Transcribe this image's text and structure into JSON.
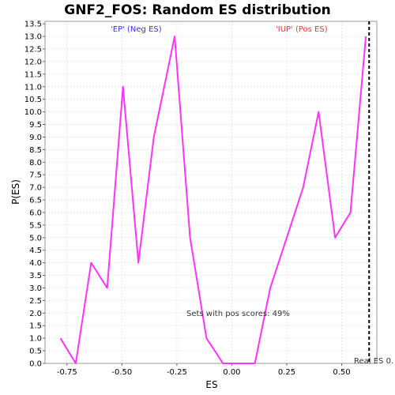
{
  "chart_data": {
    "type": "line",
    "title": "GNF2_FOS: Random ES distribution",
    "xlabel": "ES",
    "ylabel": "P(ES)",
    "xlim": [
      -0.85,
      0.66
    ],
    "ylim": [
      0,
      13.6
    ],
    "x_ticks": [
      -0.75,
      -0.5,
      -0.25,
      0.0,
      0.25,
      0.5
    ],
    "x_tick_labels": [
      "-0.75",
      "-0.50",
      "-0.25",
      "0.00",
      "0.25",
      "0.50"
    ],
    "y_ticks": [
      0,
      0.5,
      1,
      1.5,
      2,
      2.5,
      3,
      3.5,
      4,
      4.5,
      5,
      5.5,
      6,
      6.5,
      7,
      7.5,
      8,
      8.5,
      9,
      9.5,
      10,
      10.5,
      11,
      11.5,
      12,
      12.5,
      13,
      13.5
    ],
    "y_tick_labels": [
      "0.0",
      "0.5",
      "1.0",
      "1.5",
      "2.0",
      "2.5",
      "3.0",
      "3.5",
      "4.0",
      "4.5",
      "5.0",
      "5.5",
      "6.0",
      "6.5",
      "7.0",
      "7.5",
      "8.0",
      "8.5",
      "9.0",
      "9.5",
      "10.0",
      "10.5",
      "11.0",
      "11.5",
      "12.0",
      "12.5",
      "13.0",
      "13.5"
    ],
    "grid": true,
    "series": [
      {
        "color": "#ff33ff",
        "x": [
          -0.78,
          -0.71,
          -0.64,
          -0.567,
          -0.495,
          -0.425,
          -0.355,
          -0.26,
          -0.19,
          -0.115,
          -0.04,
          0.035,
          0.105,
          0.175,
          0.25,
          0.325,
          0.395,
          0.47,
          0.54,
          0.61
        ],
        "y": [
          1.0,
          0.0,
          4.0,
          3.0,
          11.0,
          4.0,
          9.0,
          13.0,
          5.0,
          1.0,
          0.0,
          0.0,
          0.0,
          3.0,
          5.0,
          7.0,
          10.0,
          5.0,
          6.0,
          13.0
        ]
      }
    ],
    "real_es": 0.625,
    "real_es_color": "#000000",
    "annotations": {
      "neg_label": "'EP' (Neg ES)",
      "neg_color": "#3333ff",
      "pos_label": "'IUP' (Pos ES)",
      "pos_color": "#ff3333",
      "pos_scores_text": "Sets with pos scores: 49%",
      "real_es_text": "Real ES 0."
    }
  }
}
